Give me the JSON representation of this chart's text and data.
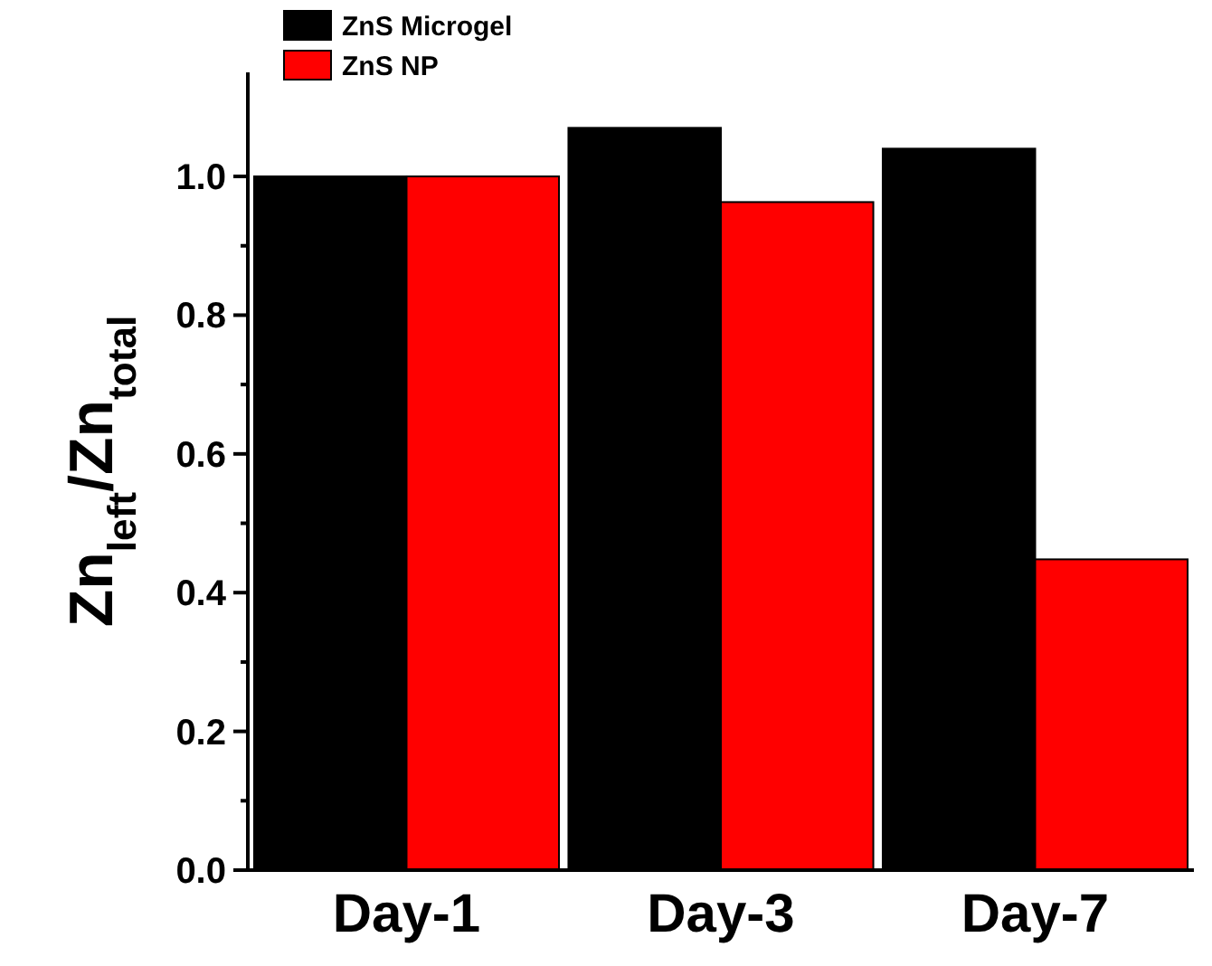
{
  "chart_data": {
    "type": "bar",
    "ylabel": "Zn$_{left}$/Zn$_{total}$",
    "categories": [
      "Day-1",
      "Day-3",
      "Day-7"
    ],
    "series": [
      {
        "name": "ZnS Microgel",
        "color": "#000000",
        "values": [
          1.0,
          1.07,
          1.04
        ]
      },
      {
        "name": "ZnS NP",
        "color": "#ff0000",
        "values": [
          1.0,
          0.963,
          0.448
        ]
      }
    ],
    "ylim": [
      0,
      1.15
    ],
    "yticks": [
      {
        "value": 0,
        "label": "0.0"
      },
      0.2,
      0.4,
      0.6,
      0.8,
      {
        "value": 1,
        "label": "1.0"
      }
    ],
    "legend": "top left"
  }
}
